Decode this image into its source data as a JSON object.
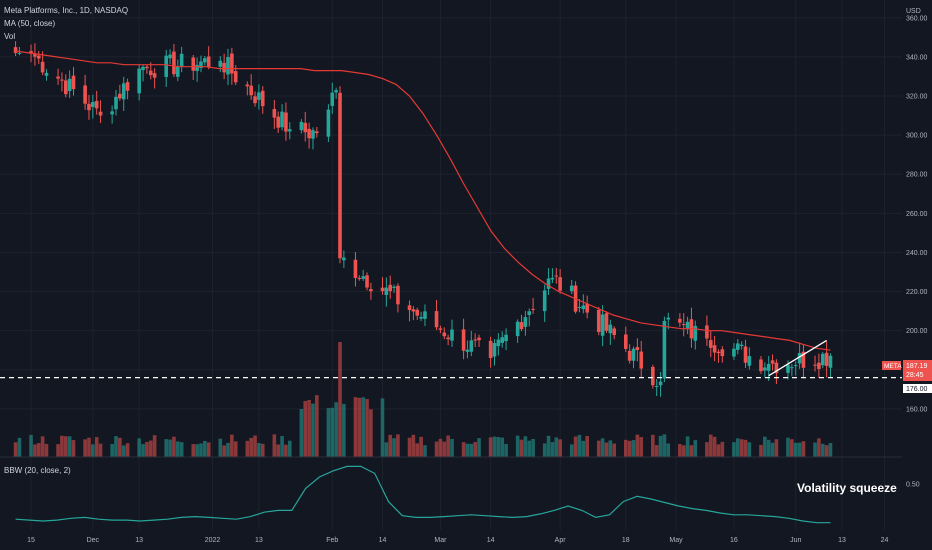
{
  "header": {
    "title": "Meta Platforms, Inc., 1D, NASDAQ",
    "ma_label": "MA (50, close)",
    "vol_label": "Vol",
    "indicator_label": "BBW (20, close, 2)",
    "currency": "USD"
  },
  "annotation": "Volatility squeeze",
  "price_tag": {
    "symbol": "META",
    "price": "187.19",
    "countdown": "28:45"
  },
  "level_tag": "176.00",
  "colors": {
    "background": "#131722",
    "up": "#26a69a",
    "down": "#ef5350",
    "ma": "#e53935",
    "bbw": "#26a69a",
    "level": "#ffffff",
    "trendline": "#ffffff"
  },
  "chart_data": [
    {
      "type": "candlestick",
      "title": "Meta Platforms, Inc., 1D, NASDAQ",
      "yaxis_ticks": [
        "360.00",
        "340.00",
        "320.00",
        "300.00",
        "280.00",
        "260.00",
        "240.00",
        "220.00",
        "200.00",
        "180.00",
        "160.00"
      ],
      "xaxis_ticks": [
        "15",
        "Dec",
        "13",
        "2022",
        "13",
        "Feb",
        "14",
        "Mar",
        "14",
        "Apr",
        "18",
        "May",
        "16",
        "Jun",
        "13",
        "24"
      ],
      "ylim": [
        140,
        365
      ],
      "horizontal_level": 176,
      "trendline": {
        "from": [
          "2022-05-25",
          177
        ],
        "to": [
          "2022-06-09",
          195
        ]
      },
      "series": [
        {
          "name": "MA (50, close)",
          "values": [
            343,
            342,
            341,
            340,
            339,
            338,
            337,
            337,
            336,
            336,
            336,
            336,
            335,
            335,
            335,
            334,
            334,
            334,
            334,
            334,
            334,
            334,
            333,
            333,
            333,
            332,
            331,
            329,
            326,
            320,
            311,
            300,
            288,
            275,
            263,
            251,
            242,
            235,
            229,
            224,
            220,
            217,
            214,
            211,
            208,
            206,
            204,
            203,
            202,
            201,
            201,
            200,
            200,
            199,
            198,
            197,
            196,
            195,
            193,
            191,
            190
          ]
        }
      ],
      "ohlc_samples": [
        {
          "x": "2021-11-15",
          "close": 342
        },
        {
          "x": "2021-12-03",
          "close": 310
        },
        {
          "x": "2021-12-13",
          "close": 334
        },
        {
          "x": "2022-01-03",
          "close": 338
        },
        {
          "x": "2022-01-21",
          "close": 303
        },
        {
          "x": "2022-01-28",
          "close": 301
        },
        {
          "x": "2022-02-02",
          "close": 323
        },
        {
          "x": "2022-02-03",
          "close": 237
        },
        {
          "x": "2022-02-24",
          "close": 207
        },
        {
          "x": "2022-03-14",
          "close": 186
        },
        {
          "x": "2022-03-30",
          "close": 227
        },
        {
          "x": "2022-04-27",
          "close": 174
        },
        {
          "x": "2022-04-28",
          "close": 205
        },
        {
          "x": "2022-05-09",
          "close": 196
        },
        {
          "x": "2022-05-25",
          "close": 183
        },
        {
          "x": "2022-06-10",
          "close": 187.19
        }
      ],
      "volume_spike": {
        "x": "2022-02-03",
        "relative": "largest"
      }
    },
    {
      "type": "line",
      "title": "BBW (20, close, 2)",
      "yaxis_ticks": [
        "0.50"
      ],
      "ylim": [
        0,
        0.75
      ],
      "series": [
        {
          "name": "BBW (20, close, 2)",
          "values": [
            0.1,
            0.09,
            0.08,
            0.09,
            0.11,
            0.12,
            0.1,
            0.09,
            0.09,
            0.08,
            0.09,
            0.1,
            0.12,
            0.13,
            0.12,
            0.11,
            0.1,
            0.13,
            0.18,
            0.2,
            0.2,
            0.45,
            0.58,
            0.65,
            0.7,
            0.7,
            0.62,
            0.3,
            0.14,
            0.12,
            0.12,
            0.13,
            0.14,
            0.15,
            0.14,
            0.13,
            0.12,
            0.13,
            0.16,
            0.2,
            0.25,
            0.2,
            0.12,
            0.15,
            0.3,
            0.36,
            0.33,
            0.29,
            0.25,
            0.22,
            0.2,
            0.17,
            0.15,
            0.15,
            0.14,
            0.13,
            0.11,
            0.08,
            0.06,
            0.06
          ]
        }
      ]
    }
  ]
}
